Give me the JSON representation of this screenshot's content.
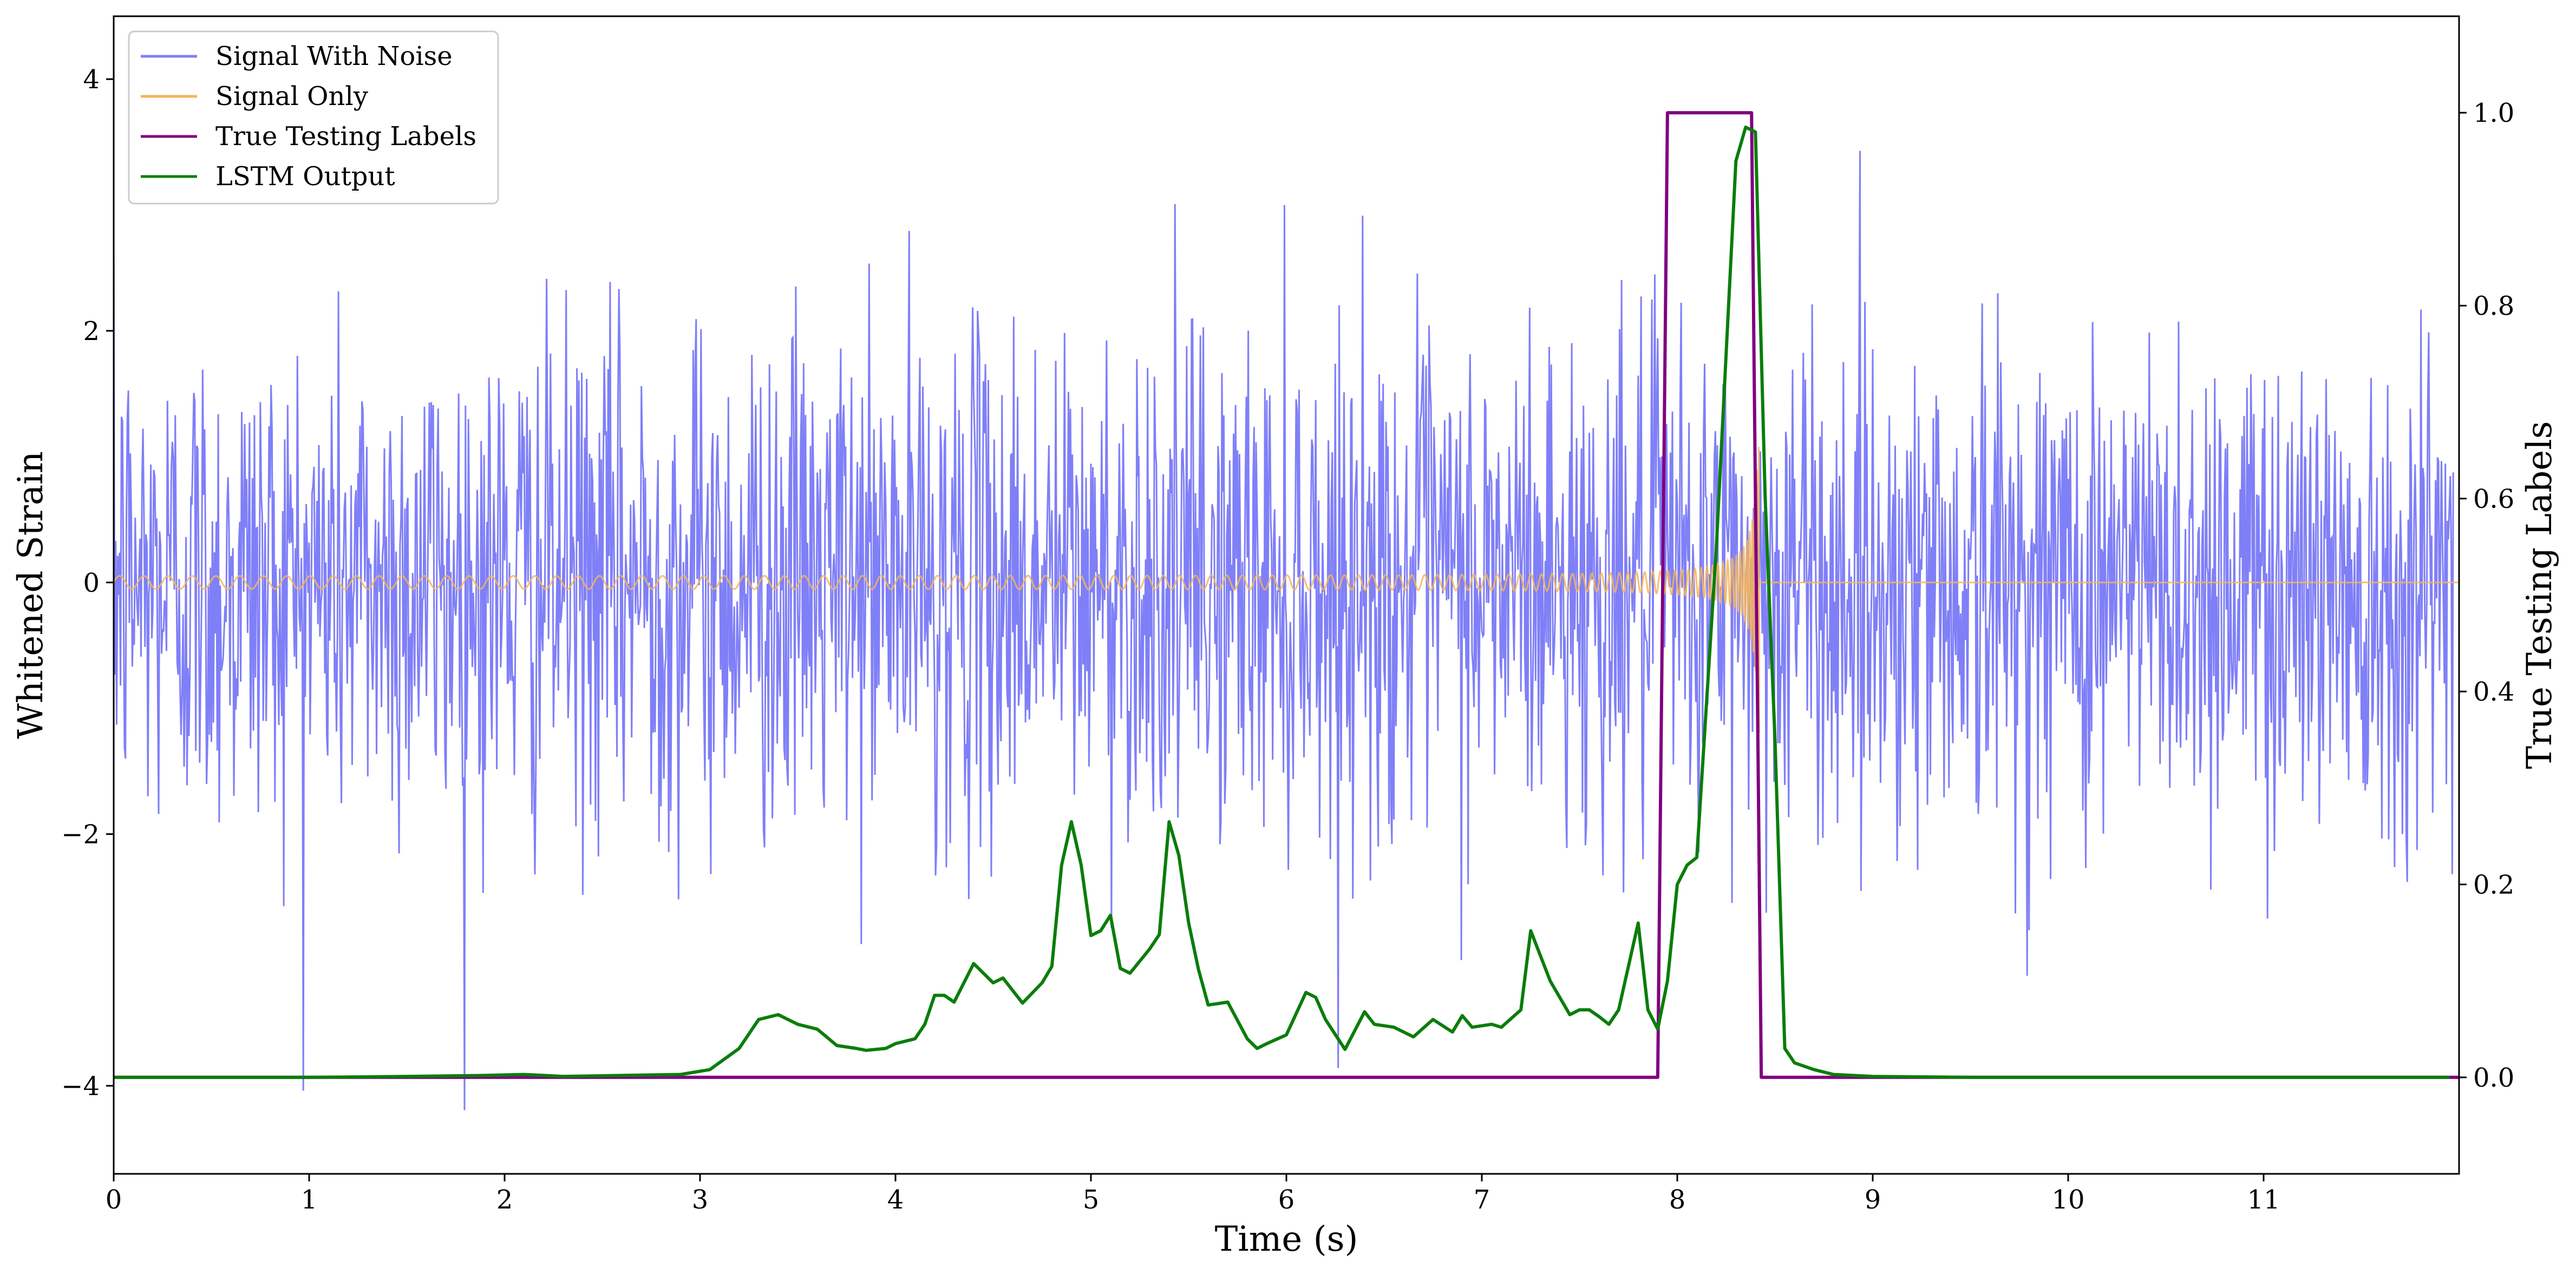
{
  "chart_data": {
    "type": "line",
    "xlabel": "Time (s)",
    "ylabel_left": "Whitened Strain",
    "ylabel_right": "True Testing Labels",
    "xlim": [
      0,
      12
    ],
    "ylim_left": [
      -4.7,
      4.5
    ],
    "ylim_right": [
      -0.1,
      1.1
    ],
    "x_ticks": [
      0,
      1,
      2,
      3,
      4,
      5,
      6,
      7,
      8,
      9,
      10,
      11
    ],
    "x_tick_labels": [
      "0",
      "1",
      "2",
      "3",
      "4",
      "5",
      "6",
      "7",
      "8",
      "9",
      "10",
      "11"
    ],
    "y_left_ticks": [
      4,
      2,
      0,
      -2,
      -4
    ],
    "y_left_tick_labels": [
      "4",
      "2",
      "0",
      "−2",
      "−4"
    ],
    "y_right_ticks": [
      1.0,
      0.8,
      0.6,
      0.4,
      0.2,
      0.0
    ],
    "y_right_tick_labels": [
      "1.0",
      "0.8",
      "0.6",
      "0.4",
      "0.2",
      "0.0"
    ],
    "legend_placement": "upper-left",
    "grid": false,
    "series": [
      {
        "name": "Signal With Noise",
        "axis": "left",
        "color": "#7f7ff8",
        "kind": "noise",
        "sample_rate_hz": 200,
        "std": 1.0,
        "min_value": -4.25,
        "max_value": 3.7
      },
      {
        "name": "Signal Only",
        "axis": "left",
        "color": "#f5b55a",
        "kind": "chirp",
        "amplitude_start": 0.05,
        "amplitude_peak": 1.2,
        "t_start": 0,
        "t_merger": 8.42,
        "value_after_merger": 0.0
      },
      {
        "name": "True Testing Labels",
        "axis": "right",
        "color": "#800080",
        "x": [
          0,
          7.9,
          7.95,
          8.38,
          8.43,
          12.0
        ],
        "y": [
          0,
          0,
          1.0,
          1.0,
          0,
          0
        ]
      },
      {
        "name": "LSTM Output",
        "axis": "right",
        "color": "#0a7d0a",
        "x": [
          0,
          0.5,
          1.0,
          1.5,
          1.9,
          2.1,
          2.3,
          2.6,
          2.9,
          3.05,
          3.2,
          3.3,
          3.4,
          3.5,
          3.6,
          3.7,
          3.8,
          3.85,
          3.95,
          4.0,
          4.1,
          4.15,
          4.2,
          4.25,
          4.3,
          4.4,
          4.5,
          4.55,
          4.6,
          4.65,
          4.75,
          4.8,
          4.85,
          4.9,
          4.95,
          5.0,
          5.05,
          5.1,
          5.15,
          5.2,
          5.3,
          5.35,
          5.4,
          5.45,
          5.5,
          5.55,
          5.6,
          5.7,
          5.8,
          5.85,
          5.9,
          6.0,
          6.1,
          6.15,
          6.2,
          6.3,
          6.4,
          6.45,
          6.55,
          6.6,
          6.65,
          6.75,
          6.85,
          6.9,
          6.95,
          7.05,
          7.1,
          7.2,
          7.25,
          7.35,
          7.45,
          7.5,
          7.55,
          7.6,
          7.65,
          7.7,
          7.8,
          7.85,
          7.9,
          7.95,
          8.0,
          8.05,
          8.1,
          8.2,
          8.3,
          8.35,
          8.4,
          8.45,
          8.5,
          8.55,
          8.6,
          8.7,
          8.8,
          9.0,
          9.5,
          10.0,
          11.0,
          11.95
        ],
        "y": [
          0,
          0,
          0,
          0.001,
          0.002,
          0.003,
          0.001,
          0.002,
          0.003,
          0.008,
          0.03,
          0.06,
          0.065,
          0.055,
          0.05,
          0.033,
          0.03,
          0.028,
          0.03,
          0.035,
          0.04,
          0.055,
          0.085,
          0.085,
          0.078,
          0.118,
          0.098,
          0.103,
          0.09,
          0.077,
          0.098,
          0.115,
          0.22,
          0.265,
          0.22,
          0.147,
          0.152,
          0.168,
          0.113,
          0.108,
          0.133,
          0.148,
          0.265,
          0.23,
          0.16,
          0.112,
          0.075,
          0.078,
          0.04,
          0.03,
          0.035,
          0.044,
          0.088,
          0.083,
          0.06,
          0.029,
          0.068,
          0.055,
          0.052,
          0.047,
          0.042,
          0.06,
          0.047,
          0.064,
          0.052,
          0.055,
          0.052,
          0.07,
          0.152,
          0.1,
          0.065,
          0.07,
          0.07,
          0.063,
          0.055,
          0.07,
          0.16,
          0.07,
          0.05,
          0.1,
          0.2,
          0.22,
          0.228,
          0.55,
          0.95,
          0.985,
          0.98,
          0.6,
          0.35,
          0.03,
          0.015,
          0.008,
          0.003,
          0.001,
          0,
          0,
          0,
          0
        ]
      }
    ]
  }
}
